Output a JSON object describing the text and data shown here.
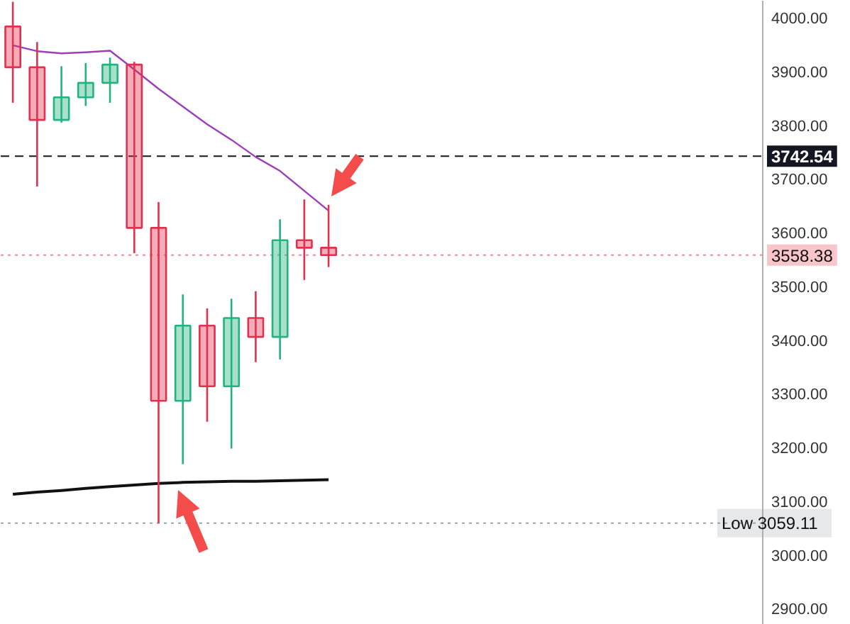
{
  "chart_data": {
    "type": "candlestick",
    "categories": [
      null,
      null,
      null,
      null,
      null,
      null,
      null,
      null,
      null,
      null,
      null,
      null,
      null,
      null,
      null,
      null,
      null,
      null,
      null,
      null,
      null,
      null,
      null,
      null,
      null,
      null,
      null,
      null,
      null,
      null,
      null,
      null,
      null,
      null,
      null
    ],
    "ohlc": [
      [
        3984,
        4030,
        3842,
        3908
      ],
      [
        3908,
        3955,
        3686,
        3810
      ],
      [
        3810,
        3910,
        3805,
        3852
      ],
      [
        3852,
        3916,
        3836,
        3879
      ],
      [
        3879,
        3926,
        3842,
        3913
      ],
      [
        3913,
        3918,
        3562,
        3609
      ],
      [
        3609,
        3657,
        3059.11,
        3287
      ],
      [
        3287,
        3485,
        3169,
        3427
      ],
      [
        3427,
        3459,
        3248,
        3314
      ],
      [
        3314,
        3477,
        3198,
        3441
      ],
      [
        3441,
        3491,
        3359,
        3406
      ],
      [
        3406,
        3625,
        3364,
        3586
      ],
      [
        3586,
        3662,
        3512,
        3572
      ],
      [
        3572,
        3652,
        3536,
        3558.38
      ],
      null,
      null,
      null,
      null,
      null,
      null,
      null,
      null,
      null,
      null,
      null,
      null,
      null,
      null,
      null,
      null,
      null,
      null,
      null,
      null,
      null
    ],
    "colors": [
      "#e0314f",
      "#e0314f",
      "#22b37f",
      "#22b37f",
      "#22b37f",
      "#e0314f",
      "#e0314f",
      "#22b37f",
      "#e0314f",
      "#22b37f",
      "#e0314f",
      "#22b37f",
      "#e0314f",
      "#e0314f",
      null,
      null,
      null,
      null,
      null,
      null,
      null,
      null,
      null,
      null,
      null,
      null,
      null,
      null,
      null,
      null,
      null,
      null,
      null,
      null,
      null
    ],
    "series": [
      {
        "type": "line",
        "color": "#9c3fb8",
        "values": [
          3949,
          3938,
          3934,
          3936,
          3939,
          3904,
          3868,
          3835,
          3802,
          3773,
          3741,
          3715,
          3678,
          3641,
          null,
          null,
          null,
          null,
          null,
          null,
          null,
          null,
          null,
          null,
          null,
          null,
          null,
          null,
          null,
          null,
          null,
          null,
          null,
          null,
          null
        ]
      },
      {
        "type": "line",
        "color": "#111111",
        "values": [
          3113,
          3117,
          3120,
          3124,
          3127,
          3130,
          3133,
          3135,
          3136,
          3137,
          3137,
          3138,
          3139,
          3140,
          null,
          null,
          null,
          null,
          null,
          null,
          null,
          null,
          null,
          null,
          null,
          null,
          null,
          null,
          null,
          null,
          null,
          null,
          null,
          null,
          null
        ]
      }
    ],
    "ylim": [
      2870,
      4032
    ],
    "yticks": [
      {
        "value": 2900,
        "label": "2900.00"
      },
      {
        "value": 3000,
        "label": "3000.00"
      },
      {
        "value": 3100,
        "label": "3100.00"
      },
      {
        "value": 3200,
        "label": "3200.00"
      },
      {
        "value": 3300,
        "label": "3300.00"
      },
      {
        "value": 3400,
        "label": "3400.00"
      },
      {
        "value": 3500,
        "label": "3500.00"
      },
      {
        "value": 3600,
        "label": "3600.00"
      },
      {
        "value": 3700,
        "label": "3700.00"
      },
      {
        "value": 3800,
        "label": "3800.00"
      },
      {
        "value": 3900,
        "label": "3900.00"
      },
      {
        "value": 4000,
        "label": "4000.00"
      }
    ],
    "ref_lines": [
      {
        "axis": "y",
        "value": 3742.54,
        "label": "3742.54",
        "color": "#131722",
        "line_style": "dashed"
      },
      {
        "axis": "y",
        "value": 3558.38,
        "label": "3558.38",
        "color": "#f28b96",
        "line_style": "dotted"
      },
      {
        "axis": "y",
        "value": 3059.11,
        "label": "Low 3059.11",
        "color": "#9aa4b0",
        "line_style": "dotted"
      }
    ],
    "grid": false,
    "tick_labels": "y"
  }
}
